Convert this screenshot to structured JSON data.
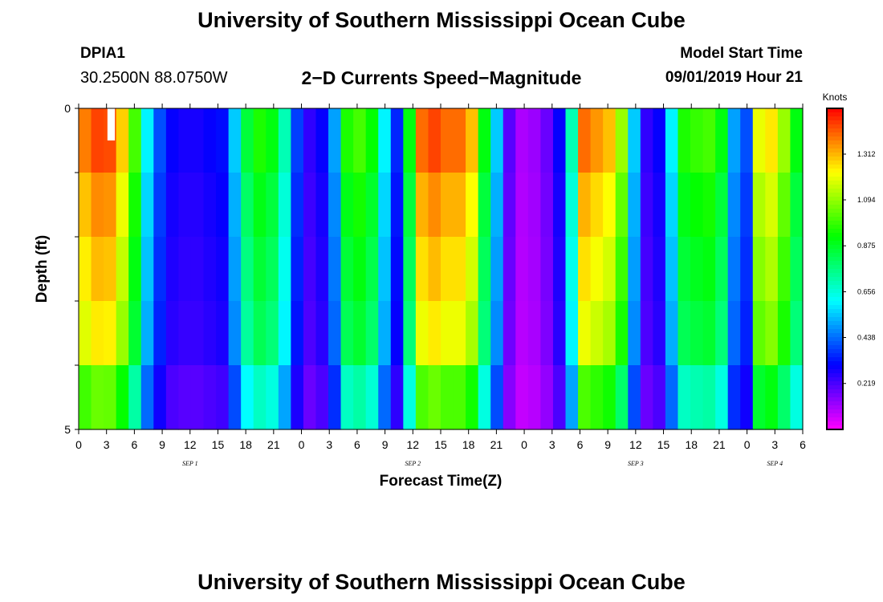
{
  "header": {
    "title": "University of Southern Mississippi Ocean Cube",
    "station": "DPIA1",
    "coords": "30.2500N 88.0750W",
    "subtitle": "2−D Currents Speed−Magnitude",
    "model_label": "Model Start Time",
    "model_time": "09/01/2019 Hour 21"
  },
  "footer": {
    "title": "University of Southern Mississippi Ocean Cube"
  },
  "chart_data": {
    "type": "heatmap",
    "xlabel": "Forecast Time(Z)",
    "ylabel": "Depth (ft)",
    "ylim": [
      0,
      5
    ],
    "y_ticks": [
      "0",
      "5"
    ],
    "x_tick_labels": [
      "0",
      "3",
      "6",
      "9",
      "12",
      "15",
      "18",
      "21",
      "0",
      "3",
      "6",
      "9",
      "12",
      "15",
      "18",
      "21",
      "0",
      "3",
      "6",
      "9",
      "12",
      "15",
      "18",
      "21",
      "0",
      "3",
      "6"
    ],
    "date_labels": [
      {
        "label": "SEP 1",
        "hour": 12
      },
      {
        "label": "SEP 2",
        "hour": 36
      },
      {
        "label": "SEP 3",
        "hour": 60
      },
      {
        "label": "SEP 4",
        "hour": 75
      }
    ],
    "x_range_hours": [
      0,
      78
    ],
    "colorbar": {
      "title": "Knots",
      "min": 0.0,
      "max": 1.53,
      "tick_labels": [
        "1.312",
        "1.094",
        "0.875",
        "0.656",
        "0.438",
        "0.219"
      ],
      "tick_values": [
        1.312,
        1.094,
        0.875,
        0.656,
        0.438,
        0.219
      ]
    },
    "depth_bins": [
      0.5,
      1.5,
      2.5,
      3.5,
      4.5
    ],
    "surface_profile_knots": [
      1.38,
      1.45,
      1.44,
      1.28,
      1.0,
      0.6,
      0.4,
      0.3,
      0.28,
      0.28,
      0.3,
      0.32,
      0.55,
      0.85,
      0.95,
      0.9,
      0.7,
      0.38,
      0.25,
      0.3,
      0.5,
      0.95,
      1.0,
      0.92,
      0.6,
      0.35,
      0.9,
      1.4,
      1.45,
      1.4,
      1.4,
      1.3,
      0.9,
      0.55,
      0.2,
      0.1,
      0.12,
      0.18,
      0.3,
      0.7,
      1.4,
      1.35,
      1.3,
      1.1,
      0.55,
      0.25,
      0.3,
      0.6,
      0.95,
      0.98,
      1.0,
      0.9,
      0.5,
      0.4,
      1.2,
      1.25,
      1.1,
      0.9
    ],
    "depth_factors": [
      1.0,
      0.94,
      0.9,
      0.86,
      0.72
    ],
    "blank_cell": {
      "hour": 3.5,
      "depth": 0.25
    }
  }
}
